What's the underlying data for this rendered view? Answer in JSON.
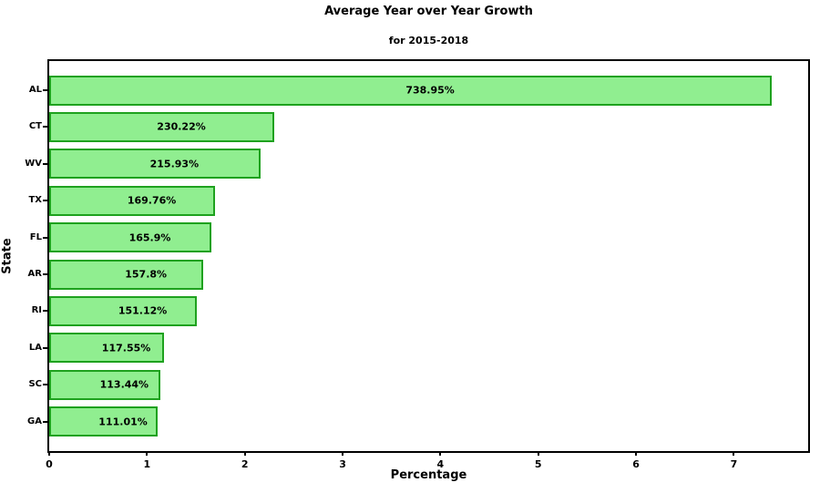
{
  "figure": {
    "background": "#ffffff"
  },
  "chart_data": {
    "type": "bar",
    "orientation": "horizontal",
    "title": "Average Year over Year Growth",
    "subtitle": "for 2015-2018",
    "xlabel": "Percentage",
    "ylabel": "State",
    "categories": [
      "AL",
      "CT",
      "WV",
      "TX",
      "FL",
      "AR",
      "RI",
      "LA",
      "SC",
      "GA"
    ],
    "values": [
      7.3895,
      2.3022,
      2.1593,
      1.6976,
      1.659,
      1.578,
      1.5112,
      1.1755,
      1.1344,
      1.1101
    ],
    "bar_labels": [
      "738.95%",
      "230.22%",
      "215.93%",
      "169.76%",
      "165.9%",
      "157.8%",
      "151.12%",
      "117.55%",
      "113.44%",
      "111.01%"
    ],
    "x_ticks": [
      "0",
      "1",
      "2",
      "3",
      "4",
      "5",
      "6",
      "7"
    ],
    "xlim": [
      0,
      7.76
    ],
    "grid": false,
    "legend_position": null,
    "bar_color": "#90ee90",
    "bar_edge_color": "#1ea11e",
    "label_color": "#000000"
  }
}
